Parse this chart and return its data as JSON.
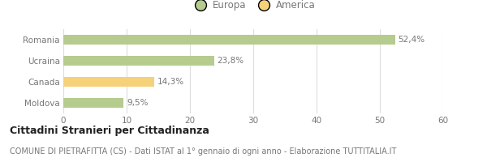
{
  "categories": [
    "Romania",
    "Ucraina",
    "Canada",
    "Moldova"
  ],
  "values": [
    52.4,
    23.8,
    14.3,
    9.5
  ],
  "labels": [
    "52,4%",
    "23,8%",
    "14,3%",
    "9,5%"
  ],
  "colors": [
    "#b5cc8e",
    "#b5cc8e",
    "#f5d17a",
    "#b5cc8e"
  ],
  "legend": [
    {
      "label": "Europa",
      "color": "#b5cc8e"
    },
    {
      "label": "America",
      "color": "#f5d17a"
    }
  ],
  "xlim": [
    0,
    60
  ],
  "xticks": [
    0,
    10,
    20,
    30,
    40,
    50,
    60
  ],
  "title_bold": "Cittadini Stranieri per Cittadinanza",
  "subtitle": "COMUNE DI PIETRAFITTA (CS) - Dati ISTAT al 1° gennaio di ogni anno - Elaborazione TUTTITALIA.IT",
  "bar_height": 0.45,
  "background_color": "#ffffff",
  "grid_color": "#dddddd",
  "label_fontsize": 7.5,
  "tick_fontsize": 7.5,
  "title_fontsize": 9.0,
  "subtitle_fontsize": 7.0,
  "legend_fontsize": 8.5,
  "text_color": "#777777",
  "title_color": "#222222"
}
